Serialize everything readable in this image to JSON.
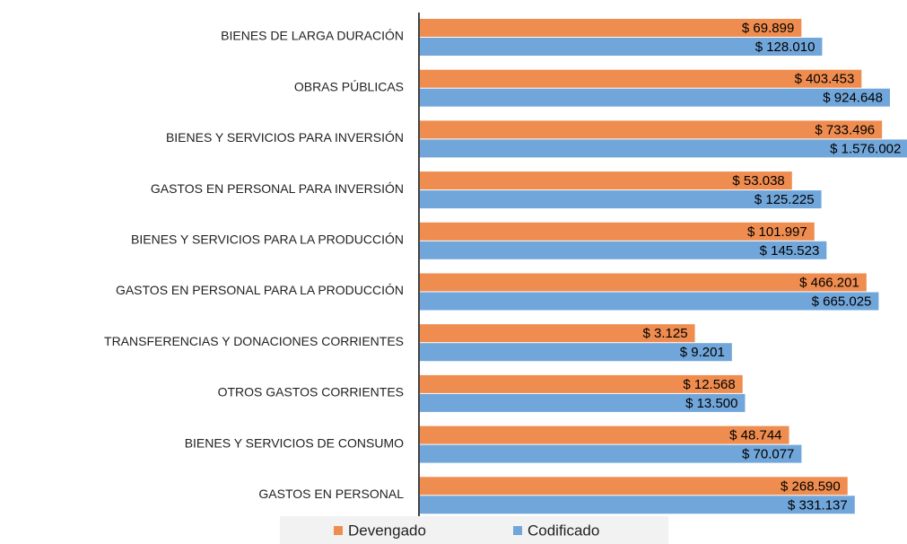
{
  "chart_data": {
    "type": "bar",
    "orientation": "horizontal",
    "xscale": "log",
    "xlim": [
      1,
      10000000
    ],
    "categories": [
      "BIENES DE LARGA DURACIÓN",
      "OBRAS PÚBLICAS",
      "BIENES Y SERVICIOS PARA INVERSIÓN",
      "GASTOS EN PERSONAL PARA INVERSIÓN",
      "BIENES Y SERVICIOS PARA LA PRODUCCIÓN",
      "GASTOS EN PERSONAL PARA LA PRODUCCIÓN",
      "TRANSFERENCIAS Y DONACIONES CORRIENTES",
      "OTROS GASTOS CORRIENTES",
      "BIENES Y SERVICIOS DE CONSUMO",
      "GASTOS EN PERSONAL"
    ],
    "series": [
      {
        "name": "Devengado",
        "color": "#ef8c4f",
        "values": [
          69899,
          403453,
          733496,
          53038,
          101997,
          466201,
          3125,
          12568,
          48744,
          268590
        ],
        "value_labels": [
          "$ 69.899",
          "$ 403.453",
          "$ 733.496",
          "$ 53.038",
          "$ 101.997",
          "$ 466.201",
          "$ 3.125",
          "$ 12.568",
          "$ 48.744",
          "$ 268.590"
        ]
      },
      {
        "name": "Codificado",
        "color": "#71a6da",
        "values": [
          128010,
          924648,
          1576002,
          125225,
          145523,
          665025,
          9201,
          13500,
          70077,
          331137
        ],
        "value_labels": [
          "$ 128.010",
          "$ 924.648",
          "$ 1.576.002",
          "$ 125.225",
          "$ 145.523",
          "$ 665.025",
          "$ 9.201",
          "$ 13.500",
          "$ 70.077",
          "$ 331.137"
        ]
      }
    ],
    "legend": "bottom"
  }
}
